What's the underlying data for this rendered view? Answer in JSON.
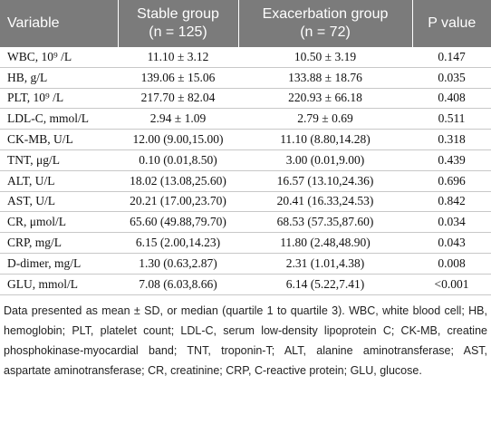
{
  "header": {
    "columns": [
      {
        "lines": [
          "Variable"
        ]
      },
      {
        "lines": [
          "Stable group",
          "(n = 125)"
        ]
      },
      {
        "lines": [
          "Exacerbation group",
          "(n = 72)"
        ]
      },
      {
        "lines": [
          "P value"
        ]
      }
    ]
  },
  "table": {
    "rows": [
      [
        "WBC, 10⁹ /L",
        "11.10 ± 3.12",
        "10.50 ± 3.19",
        "0.147"
      ],
      [
        "HB, g/L",
        "139.06 ± 15.06",
        "133.88 ± 18.76",
        "0.035"
      ],
      [
        "PLT, 10⁹ /L",
        "217.70 ± 82.04",
        "220.93 ± 66.18",
        "0.408"
      ],
      [
        "LDL-C, mmol/L",
        "2.94 ± 1.09",
        "2.79 ± 0.69",
        "0.511"
      ],
      [
        "CK-MB, U/L",
        "12.00 (9.00,15.00)",
        "11.10 (8.80,14.28)",
        "0.318"
      ],
      [
        "TNT, μg/L",
        "0.10 (0.01,8.50)",
        "3.00 (0.01,9.00)",
        "0.439"
      ],
      [
        "ALT, U/L",
        "18.02 (13.08,25.60)",
        "16.57 (13.10,24.36)",
        "0.696"
      ],
      [
        "AST, U/L",
        "20.21 (17.00,23.70)",
        "20.41 (16.33,24.53)",
        "0.842"
      ],
      [
        "CR, μmol/L",
        "65.60 (49.88,79.70)",
        "68.53 (57.35,87.60)",
        "0.034"
      ],
      [
        "CRP, mg/L",
        "6.15 (2.00,14.23)",
        "11.80 (2.48,48.90)",
        "0.043"
      ],
      [
        "D-dimer, mg/L",
        "1.30 (0.63,2.87)",
        "2.31 (1.01,4.38)",
        "0.008"
      ],
      [
        "GLU, mmol/L",
        "7.08 (6.03,8.66)",
        "6.14 (5.22,7.41)",
        "<0.001"
      ]
    ]
  },
  "footnote": "Data presented as mean ± SD, or median (quartile 1 to quartile 3). WBC, white blood cell; HB, hemoglobin; PLT, platelet count; LDL-C, serum low-density lipoprotein C; CK-MB, creatine phosphokinase-myocardial band; TNT, troponin-T; ALT, alanine aminotransferase; AST, aspartate aminotransferase; CR, creatinine; CRP, C-reactive protein; GLU, glucose."
}
